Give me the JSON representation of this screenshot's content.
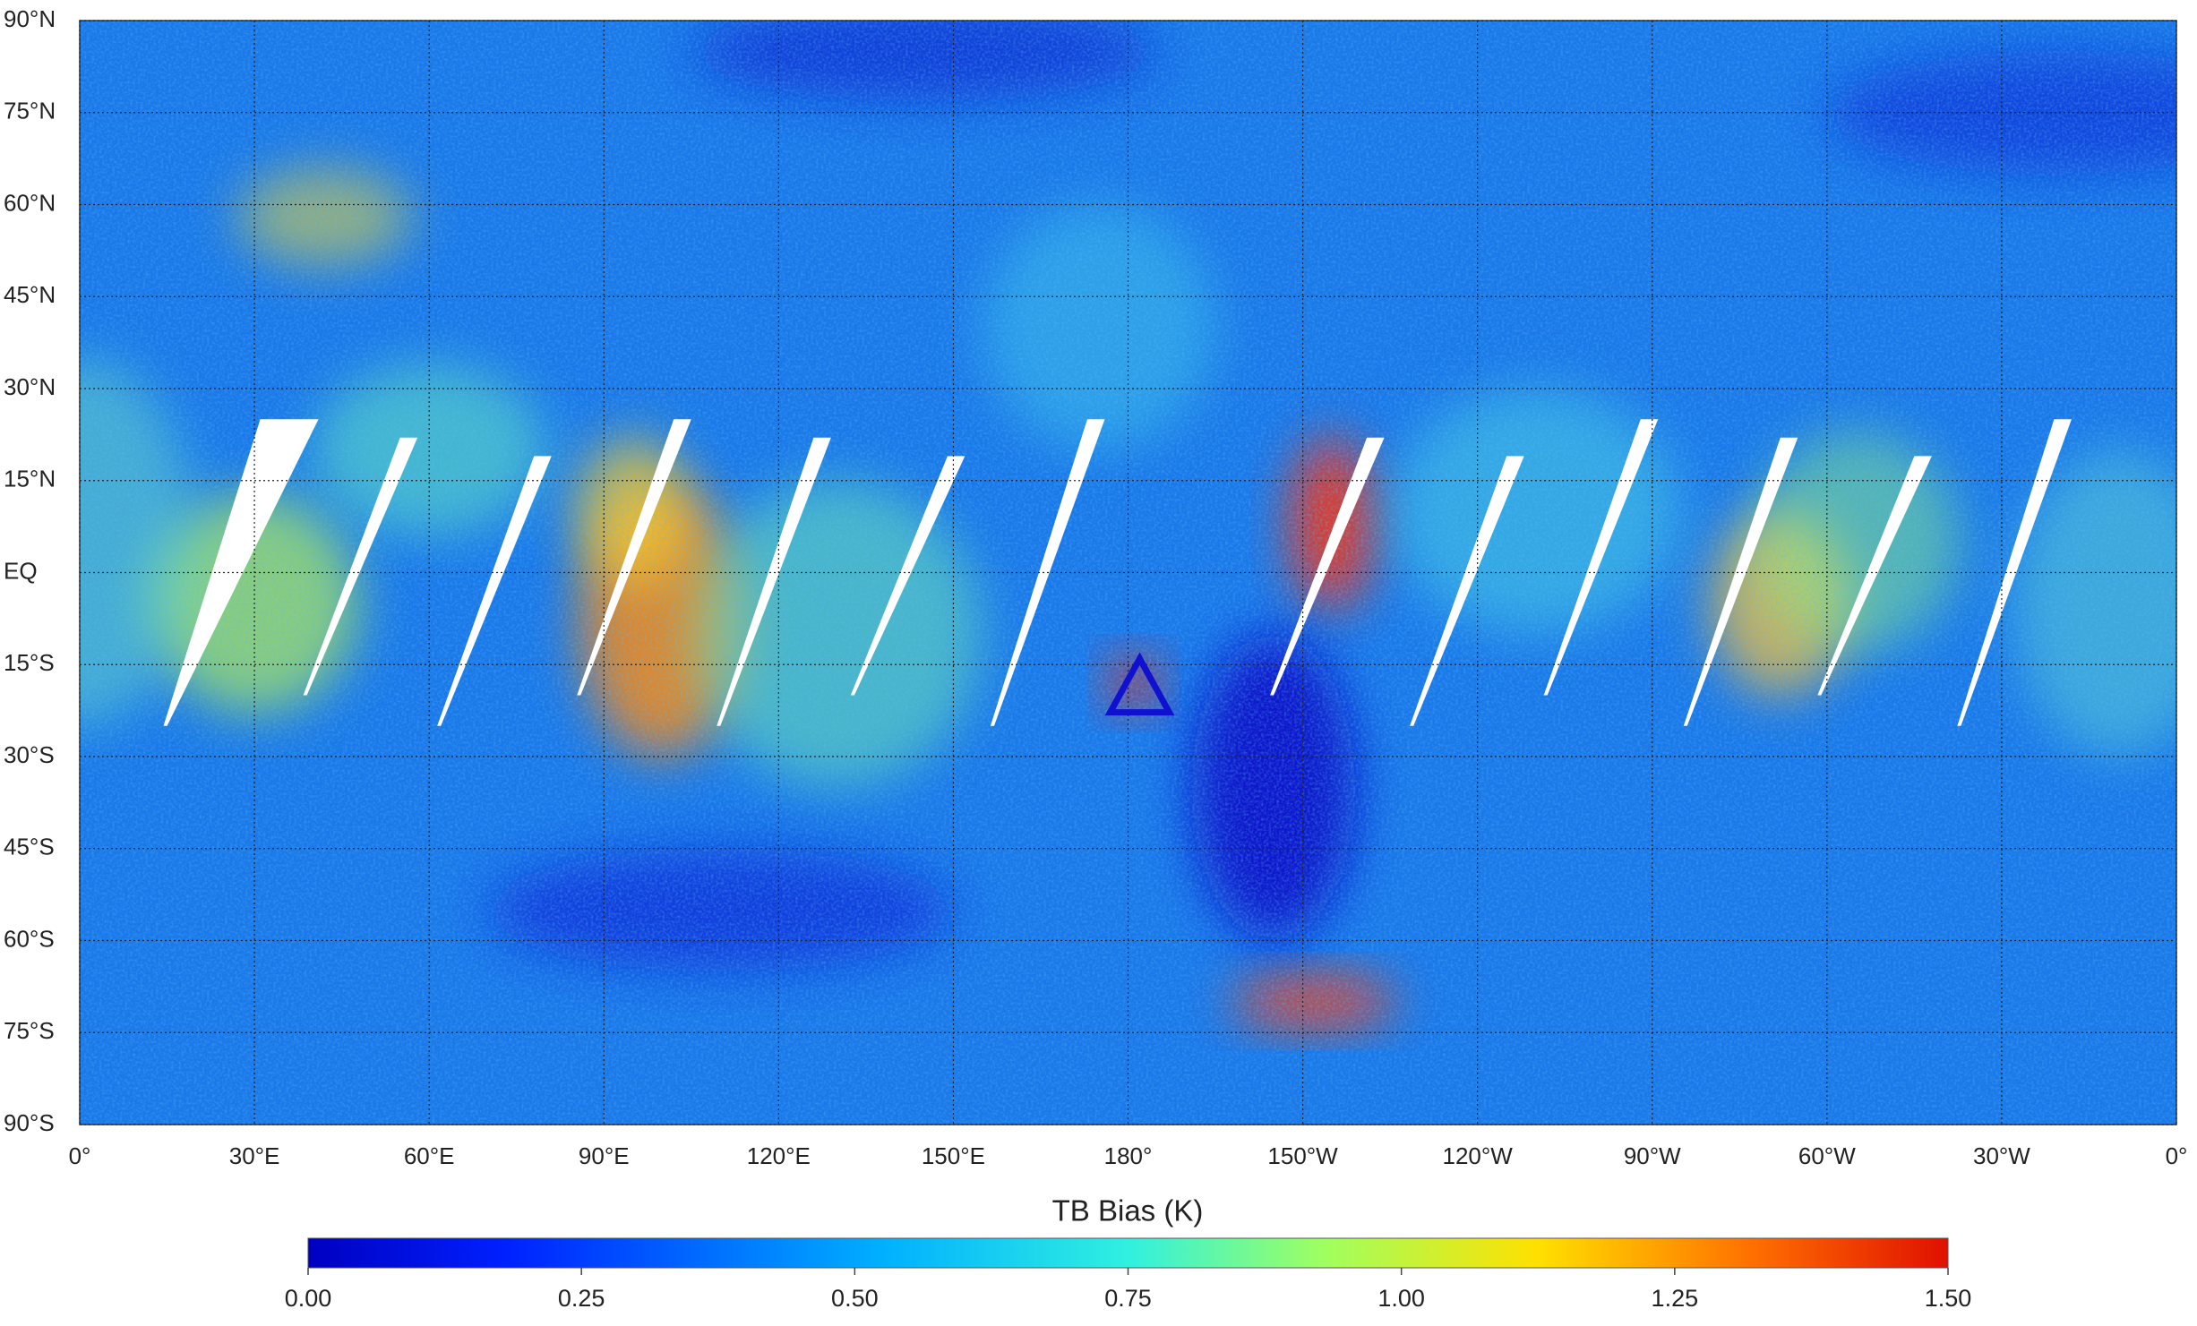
{
  "map": {
    "lat_ticks": [
      {
        "value": 90,
        "label": "90°N"
      },
      {
        "value": 75,
        "label": "75°N"
      },
      {
        "value": 60,
        "label": "60°N"
      },
      {
        "value": 45,
        "label": "45°N"
      },
      {
        "value": 30,
        "label": "30°N"
      },
      {
        "value": 15,
        "label": "15°N"
      },
      {
        "value": 0,
        "label": "EQ"
      },
      {
        "value": -15,
        "label": "15°S"
      },
      {
        "value": -30,
        "label": "30°S"
      },
      {
        "value": -45,
        "label": "45°S"
      },
      {
        "value": -60,
        "label": "60°S"
      },
      {
        "value": -75,
        "label": "75°S"
      },
      {
        "value": -90,
        "label": "90°S"
      }
    ],
    "lon_ticks": [
      {
        "value": 0,
        "label": "0°"
      },
      {
        "value": 30,
        "label": "30°E"
      },
      {
        "value": 60,
        "label": "60°E"
      },
      {
        "value": 90,
        "label": "90°E"
      },
      {
        "value": 120,
        "label": "120°E"
      },
      {
        "value": 150,
        "label": "150°E"
      },
      {
        "value": 180,
        "label": "180°"
      },
      {
        "value": 210,
        "label": "150°W"
      },
      {
        "value": 240,
        "label": "120°W"
      },
      {
        "value": 270,
        "label": "90°W"
      },
      {
        "value": 300,
        "label": "60°W"
      },
      {
        "value": 330,
        "label": "30°W"
      },
      {
        "value": 360,
        "label": "0°"
      }
    ],
    "xlim": [
      0,
      360
    ],
    "ylim": [
      -90,
      90
    ],
    "marker": {
      "lon": 182,
      "lat": -19,
      "color": "#1010d0"
    }
  },
  "colorbar": {
    "title": "TB Bias (K)",
    "range": [
      0,
      1.5
    ],
    "ticks": [
      {
        "value": 0,
        "label": "0.00"
      },
      {
        "value": 0.25,
        "label": "0.25"
      },
      {
        "value": 0.5,
        "label": "0.50"
      },
      {
        "value": 0.75,
        "label": "0.75"
      },
      {
        "value": 1,
        "label": "1.00"
      },
      {
        "value": 1.25,
        "label": "1.25"
      },
      {
        "value": 1.5,
        "label": "1.50"
      }
    ]
  }
}
